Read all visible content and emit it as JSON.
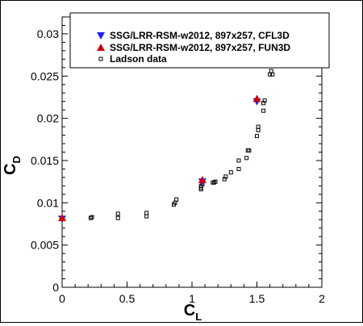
{
  "chart_data": {
    "type": "scatter",
    "xlabel": "C",
    "xlabel_sub": "L",
    "ylabel": "C",
    "ylabel_sub": "D",
    "xlim": [
      0,
      2
    ],
    "ylim": [
      0,
      0.032
    ],
    "x_ticks": [
      0,
      0.5,
      1,
      1.5,
      2
    ],
    "x_tick_labels": [
      "0",
      "0.5",
      "1",
      "1.5",
      "2"
    ],
    "y_ticks": [
      0,
      0.005,
      0.01,
      0.015,
      0.02,
      0.025,
      0.03
    ],
    "y_tick_labels": [
      "0",
      "0.005",
      "0.01",
      "0.015",
      "0.02",
      "0.025",
      "0.03"
    ],
    "grid": false,
    "legend_position": "top-right",
    "series": [
      {
        "name": "SSG/LRR-RSM-w2012, 897x257, CFL3D",
        "marker": "triangle-down",
        "color": "#2020ff",
        "points": [
          [
            0.0,
            0.0081
          ],
          [
            1.08,
            0.0125
          ],
          [
            1.5,
            0.022
          ]
        ]
      },
      {
        "name": "SSG/LRR-RSM-w2012, 897x257, FUN3D",
        "marker": "triangle-up",
        "color": "#cc0000",
        "points": [
          [
            0.0,
            0.0082
          ],
          [
            1.08,
            0.0127
          ],
          [
            1.5,
            0.0223
          ]
        ]
      },
      {
        "name": "Ladson data",
        "marker": "square-open",
        "color": "#000000",
        "points": [
          [
            0.22,
            0.0082
          ],
          [
            0.23,
            0.0083
          ],
          [
            0.43,
            0.0082
          ],
          [
            0.43,
            0.0087
          ],
          [
            0.65,
            0.0084
          ],
          [
            0.65,
            0.0088
          ],
          [
            0.86,
            0.0098
          ],
          [
            0.87,
            0.01
          ],
          [
            0.88,
            0.0104
          ],
          [
            1.07,
            0.0116
          ],
          [
            1.07,
            0.0118
          ],
          [
            1.07,
            0.012
          ],
          [
            1.08,
            0.0122
          ],
          [
            1.16,
            0.0124
          ],
          [
            1.17,
            0.0124
          ],
          [
            1.18,
            0.0125
          ],
          [
            1.25,
            0.0128
          ],
          [
            1.26,
            0.0131
          ],
          [
            1.3,
            0.0136
          ],
          [
            1.36,
            0.014
          ],
          [
            1.36,
            0.015
          ],
          [
            1.42,
            0.0153
          ],
          [
            1.43,
            0.0162
          ],
          [
            1.44,
            0.0162
          ],
          [
            1.5,
            0.0179
          ],
          [
            1.51,
            0.0186
          ],
          [
            1.51,
            0.019
          ],
          [
            1.55,
            0.0209
          ],
          [
            1.55,
            0.0218
          ],
          [
            1.56,
            0.0221
          ],
          [
            1.6,
            0.0252
          ],
          [
            1.61,
            0.0256
          ],
          [
            1.62,
            0.0252
          ]
        ]
      }
    ]
  }
}
